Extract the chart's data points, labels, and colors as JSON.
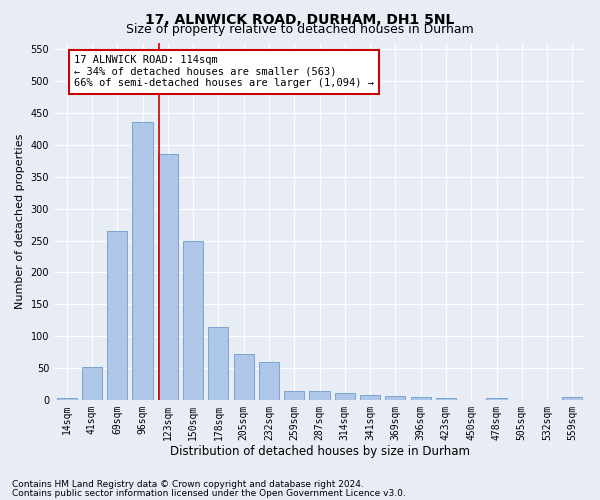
{
  "title1": "17, ALNWICK ROAD, DURHAM, DH1 5NL",
  "title2": "Size of property relative to detached houses in Durham",
  "xlabel": "Distribution of detached houses by size in Durham",
  "ylabel": "Number of detached properties",
  "categories": [
    "14sqm",
    "41sqm",
    "69sqm",
    "96sqm",
    "123sqm",
    "150sqm",
    "178sqm",
    "205sqm",
    "232sqm",
    "259sqm",
    "287sqm",
    "314sqm",
    "341sqm",
    "369sqm",
    "396sqm",
    "423sqm",
    "450sqm",
    "478sqm",
    "505sqm",
    "532sqm",
    "559sqm"
  ],
  "values": [
    3,
    52,
    265,
    435,
    385,
    250,
    115,
    72,
    60,
    15,
    15,
    12,
    8,
    6,
    5,
    4,
    0,
    3,
    0,
    0,
    5
  ],
  "bar_color": "#aec6e8",
  "bar_edge_color": "#5a8fc2",
  "bar_edge_width": 0.5,
  "ylim": [
    0,
    560
  ],
  "yticks": [
    0,
    50,
    100,
    150,
    200,
    250,
    300,
    350,
    400,
    450,
    500,
    550
  ],
  "vline_x": 3.67,
  "vline_color": "#cc0000",
  "annotation_text": "17 ALNWICK ROAD: 114sqm\n← 34% of detached houses are smaller (563)\n66% of semi-detached houses are larger (1,094) →",
  "annotation_box_color": "#ffffff",
  "annotation_box_edge": "#cc0000",
  "bg_color": "#e8edf5",
  "plot_bg_color": "#e8edf5",
  "footer1": "Contains HM Land Registry data © Crown copyright and database right 2024.",
  "footer2": "Contains public sector information licensed under the Open Government Licence v3.0.",
  "title1_fontsize": 10,
  "title2_fontsize": 9,
  "xlabel_fontsize": 8.5,
  "ylabel_fontsize": 8,
  "tick_fontsize": 7,
  "footer_fontsize": 6.5,
  "annotation_fontsize": 7.5
}
